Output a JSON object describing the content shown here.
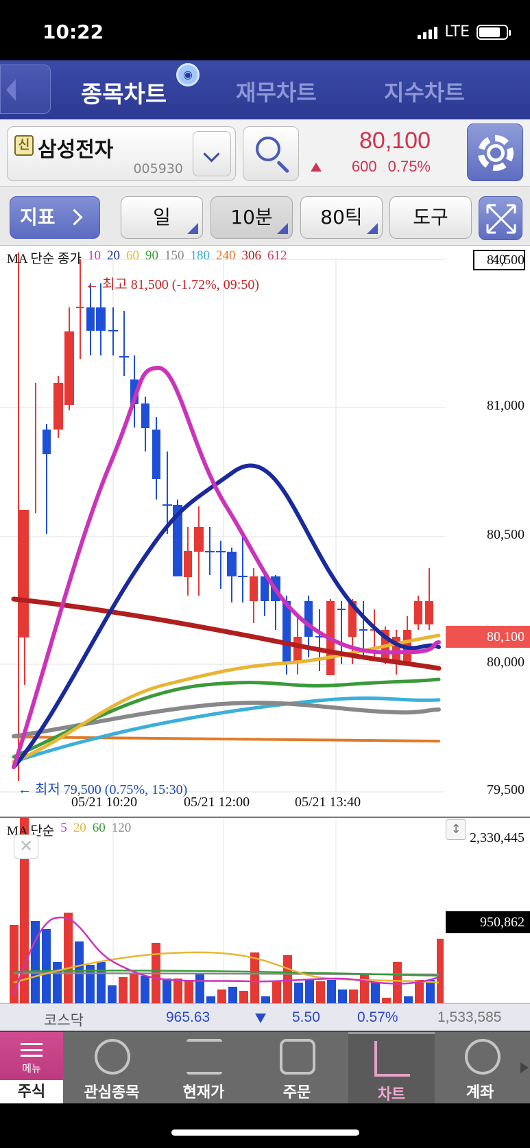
{
  "status_bar": {
    "time": "10:22",
    "network": "LTE"
  },
  "header": {
    "tabs": [
      {
        "label": "종목차트",
        "active": true
      },
      {
        "label": "재무차트",
        "active": false
      },
      {
        "label": "지수차트",
        "active": false
      }
    ]
  },
  "stock": {
    "badge": "신",
    "name": "삼성전자",
    "code": "005930",
    "price": "80,100",
    "change": "600",
    "change_pct": "0.75%",
    "direction": "up",
    "color": "#d0334f"
  },
  "toolbar": {
    "indicator": "지표",
    "day": "일",
    "interval": "10분",
    "tick": "80틱",
    "tools": "도구"
  },
  "main_chart": {
    "legend_title": "MA 단순 종가",
    "legend_items": [
      {
        "label": "10",
        "color": "#cc33bb"
      },
      {
        "label": "20",
        "color": "#1a2a9c"
      },
      {
        "label": "60",
        "color": "#e8b535"
      },
      {
        "label": "90",
        "color": "#3a9a3a"
      },
      {
        "label": "150",
        "color": "#888888"
      },
      {
        "label": "180",
        "color": "#3ab0d8"
      },
      {
        "label": "240",
        "color": "#e07a2a"
      },
      {
        "label": "306",
        "color": "#b01e1e"
      },
      {
        "label": "612",
        "color": "#d6336c"
      }
    ],
    "period_box": "40",
    "y_axis": [
      "81,500",
      "81,000",
      "80,500",
      "80,000",
      "79,500"
    ],
    "current_price_tag": "80,100",
    "high_label": "← 최고 81,500 (-1.72%, 09:50)",
    "low_label": "← 최저 79,500 (0.75%, 15:30)",
    "x_axis": [
      "05/21 10:20",
      "05/21 12:00",
      "05/21 13:40"
    ]
  },
  "volume_chart": {
    "legend_title": "MA 단순",
    "legend_items": [
      {
        "label": "5",
        "color": "#cc33bb"
      },
      {
        "label": "20",
        "color": "#e8b535"
      },
      {
        "label": "60",
        "color": "#3a9a3a"
      },
      {
        "label": "120",
        "color": "#888888"
      }
    ],
    "max_label": "2,330,445",
    "current_label": "950,862"
  },
  "index_ticker": {
    "name": "코스닥",
    "value": "965.63",
    "change": "5.50",
    "change_pct": "0.57%",
    "volume": "1,533,585"
  },
  "bottom_nav": {
    "menu_label": "메뉴",
    "menu_sub": "주식",
    "items": [
      {
        "label": "관심종목",
        "icon": "watchlist-icon"
      },
      {
        "label": "현재가",
        "icon": "current-price-icon"
      },
      {
        "label": "주문",
        "icon": "order-icon"
      },
      {
        "label": "차트",
        "icon": "chart-icon",
        "active": true
      },
      {
        "label": "계좌",
        "icon": "account-won-icon"
      }
    ]
  }
}
